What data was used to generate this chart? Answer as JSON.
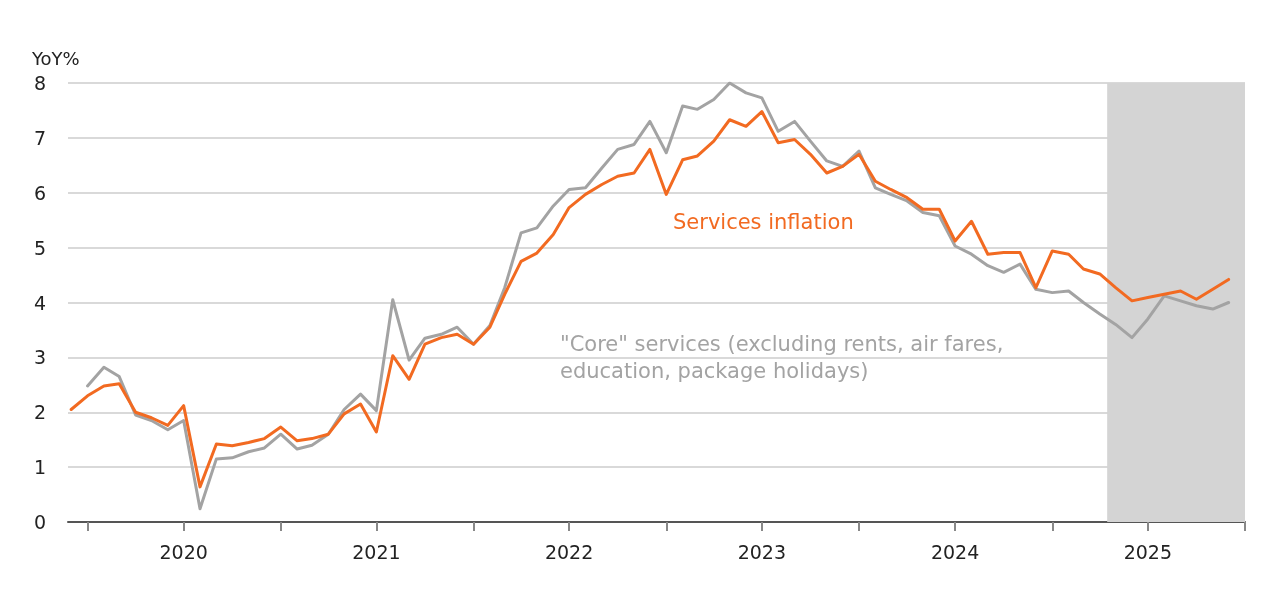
{
  "chart_data": {
    "type": "line",
    "ylabel": "YoY%",
    "x": [
      "2019-12",
      "2020-01",
      "2020-02",
      "2020-03",
      "2020-04",
      "2020-05",
      "2020-06",
      "2020-07",
      "2020-08",
      "2020-09",
      "2020-10",
      "2020-11",
      "2020-12",
      "2021-01",
      "2021-02",
      "2021-03",
      "2021-04",
      "2021-05",
      "2021-06",
      "2021-07",
      "2021-08",
      "2021-09",
      "2021-10",
      "2021-11",
      "2021-12",
      "2022-01",
      "2022-02",
      "2022-03",
      "2022-04",
      "2022-05",
      "2022-06",
      "2022-07",
      "2022-08",
      "2022-09",
      "2022-10",
      "2022-11",
      "2022-12",
      "2023-01",
      "2023-02",
      "2023-03",
      "2023-04",
      "2023-05",
      "2023-06",
      "2023-07",
      "2023-08",
      "2023-09",
      "2023-10",
      "2023-11",
      "2023-12",
      "2024-01",
      "2024-02",
      "2024-03",
      "2024-04",
      "2024-05",
      "2024-06",
      "2024-07",
      "2024-08",
      "2024-09",
      "2024-10",
      "2024-11",
      "2024-12",
      "2025-01",
      "2025-02",
      "2025-03",
      "2025-04",
      "2025-05",
      "2025-06",
      "2025-07",
      "2025-08",
      "2025-09",
      "2025-10",
      "2025-11",
      "2025-12"
    ],
    "series": [
      {
        "name": "\"Core\" services (excluding rents, air fares, education, package holidays)",
        "color": "#a3a3a3",
        "values": [
          null,
          2.48,
          2.82,
          2.65,
          1.95,
          1.85,
          1.68,
          1.85,
          0.24,
          1.15,
          1.17,
          1.28,
          1.35,
          1.6,
          1.33,
          1.4,
          1.6,
          2.05,
          2.33,
          2.03,
          4.05,
          2.95,
          3.35,
          3.42,
          3.55,
          3.24,
          3.58,
          4.27,
          5.27,
          5.36,
          5.76,
          6.06,
          6.09,
          6.45,
          6.79,
          6.88,
          7.3,
          6.73,
          7.58,
          7.52,
          7.7,
          8.0,
          7.82,
          7.73,
          7.12,
          7.3,
          6.94,
          6.58,
          6.48,
          6.76,
          6.09,
          5.97,
          5.85,
          5.64,
          5.58,
          5.03,
          4.88,
          4.67,
          4.55,
          4.7,
          4.24,
          4.18,
          4.21,
          4.0,
          3.79,
          3.6,
          3.36,
          3.7,
          4.12,
          4.03,
          3.94,
          3.88,
          4.0
        ]
      },
      {
        "name": "Services inflation",
        "color": "#f26a21",
        "values": [
          2.05,
          2.3,
          2.48,
          2.52,
          2.0,
          1.9,
          1.76,
          2.12,
          0.64,
          1.42,
          1.39,
          1.45,
          1.52,
          1.73,
          1.48,
          1.52,
          1.6,
          1.97,
          2.15,
          1.64,
          3.03,
          2.6,
          3.24,
          3.36,
          3.42,
          3.24,
          3.55,
          4.15,
          4.75,
          4.9,
          5.24,
          5.73,
          5.97,
          6.15,
          6.3,
          6.36,
          6.79,
          5.97,
          6.6,
          6.67,
          6.94,
          7.33,
          7.21,
          7.48,
          6.91,
          6.97,
          6.7,
          6.36,
          6.48,
          6.7,
          6.21,
          6.06,
          5.91,
          5.7,
          5.7,
          5.12,
          5.48,
          4.88,
          4.91,
          4.91,
          4.27,
          4.94,
          4.88,
          4.61,
          4.52,
          4.27,
          4.03,
          4.09,
          4.15,
          4.21,
          4.06,
          4.24,
          4.42
        ]
      }
    ],
    "xlim": [
      "2019-11-25",
      "2026-01-01"
    ],
    "xticks": [
      {
        "value": "2020-01-01",
        "label": null
      },
      {
        "value": "2020-07-01",
        "label": "2020"
      },
      {
        "value": "2021-01-01",
        "label": null
      },
      {
        "value": "2021-07-01",
        "label": "2021"
      },
      {
        "value": "2022-01-01",
        "label": null
      },
      {
        "value": "2022-07-01",
        "label": "2022"
      },
      {
        "value": "2023-01-01",
        "label": null
      },
      {
        "value": "2023-07-01",
        "label": "2023"
      },
      {
        "value": "2024-01-01",
        "label": null
      },
      {
        "value": "2024-07-01",
        "label": "2024"
      },
      {
        "value": "2025-01-01",
        "label": null
      },
      {
        "value": "2025-07-01",
        "label": "2025"
      },
      {
        "value": "2026-01-01",
        "label": null
      }
    ],
    "ylim": [
      0,
      8
    ],
    "yticks": [
      0,
      1,
      2,
      3,
      4,
      5,
      6,
      7,
      8
    ],
    "bands": [
      {
        "axis": "x",
        "from": "2025-04-15",
        "to": "2026-01-01",
        "color": "#d4d4d4"
      }
    ],
    "grid": "y",
    "legend": false,
    "marker": "none",
    "line_style": "solid"
  }
}
